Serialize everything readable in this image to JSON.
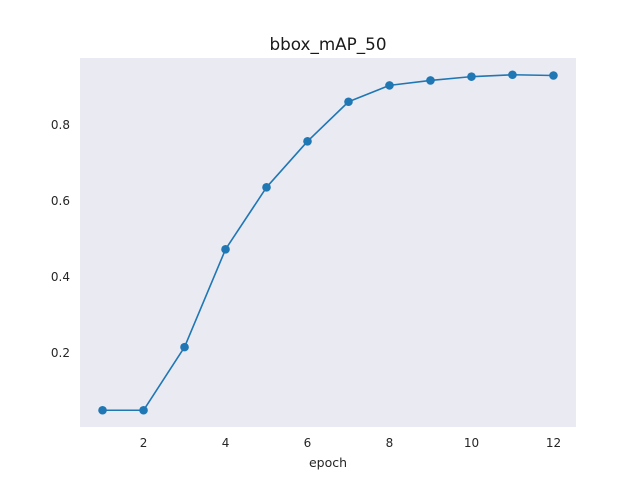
{
  "chart_data": {
    "type": "line",
    "title": "bbox_mAP_50",
    "xlabel": "epoch",
    "ylabel": "",
    "x": [
      1,
      2,
      3,
      4,
      5,
      6,
      7,
      8,
      9,
      10,
      11,
      12
    ],
    "series": [
      {
        "values": [
          0.05,
          0.05,
          0.216,
          0.473,
          0.636,
          0.757,
          0.861,
          0.904,
          0.917,
          0.927,
          0.932,
          0.93
        ],
        "color": "#1f77b4",
        "marker": "circle"
      }
    ],
    "xlim": [
      0.45,
      12.55
    ],
    "ylim": [
      0.006,
      0.976
    ],
    "xticks": [
      2,
      4,
      6,
      8,
      10,
      12
    ],
    "xtick_labels": [
      "2",
      "4",
      "6",
      "8",
      "10",
      "12"
    ],
    "yticks": [
      0.2,
      0.4,
      0.6,
      0.8
    ],
    "ytick_labels": [
      "0.2",
      "0.4",
      "0.6",
      "0.8"
    ],
    "grid": false,
    "legend": "none",
    "plot_background": "#eaeaf2"
  }
}
